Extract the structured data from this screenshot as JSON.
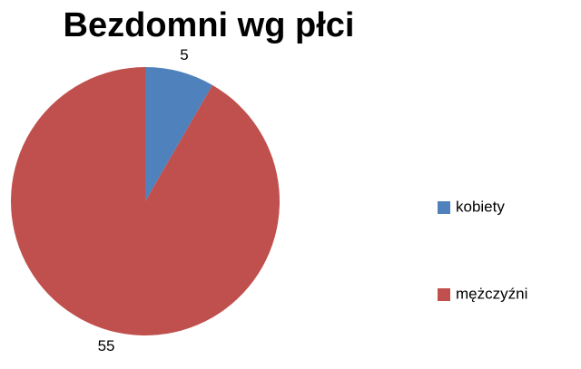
{
  "chart_data": {
    "type": "pie",
    "title": "Bezdomni wg płci",
    "categories": [
      "kobiety",
      "mężczyźni"
    ],
    "values": [
      5,
      55
    ],
    "colors": [
      "#4f81bd",
      "#c0504d"
    ],
    "legend": "right"
  }
}
